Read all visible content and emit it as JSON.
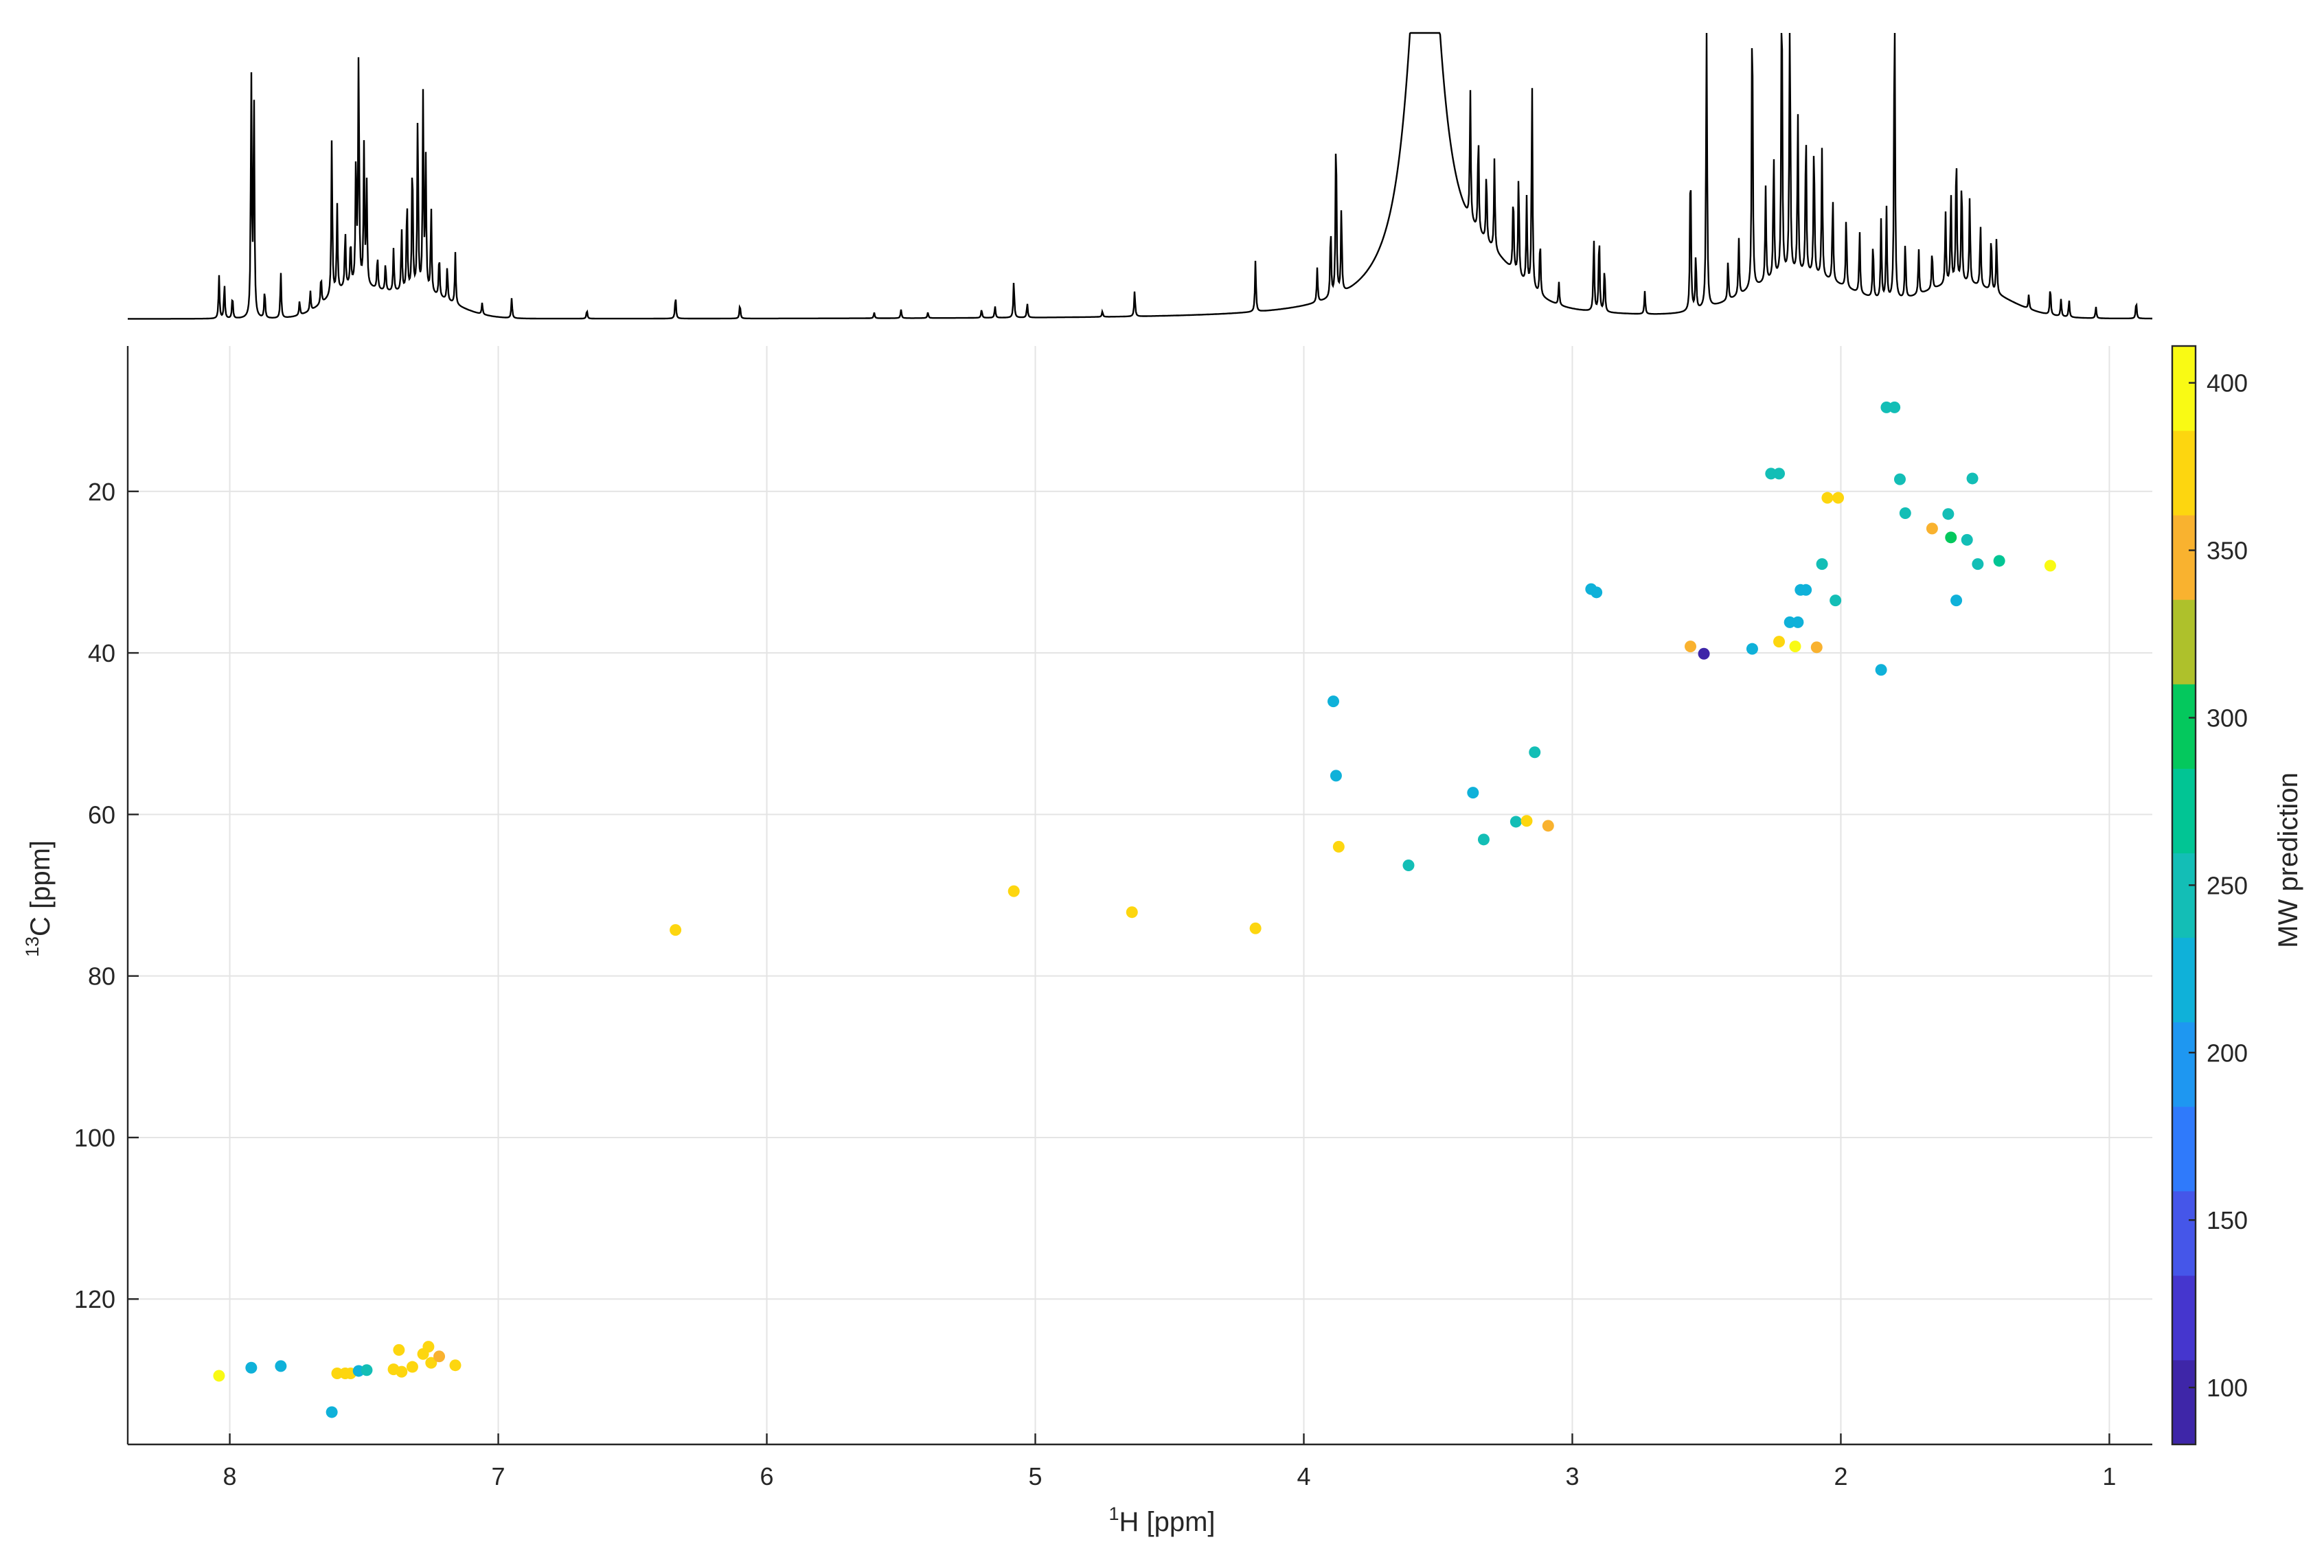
{
  "chart_data": {
    "type": "scatter",
    "title": "",
    "xlabel": {
      "sup": "1",
      "text": "H [ppm]"
    },
    "ylabel": {
      "sup": "13",
      "text": "C [ppm]"
    },
    "xlim": [
      8.38,
      0.84
    ],
    "ylim": [
      138,
      2
    ],
    "x_reversed": true,
    "y_reversed": true,
    "grid": true,
    "x_ticks": [
      8,
      7,
      6,
      5,
      4,
      3,
      2,
      1
    ],
    "x_tick_labels": [
      "8",
      "7",
      "6",
      "5",
      "4",
      "3",
      "2",
      "1"
    ],
    "y_ticks": [
      20,
      40,
      60,
      80,
      100,
      120
    ],
    "y_tick_labels": [
      "20",
      "40",
      "60",
      "80",
      "100",
      "120"
    ],
    "colorbar": {
      "label": "MW prediction",
      "range": [
        83,
        411
      ],
      "ticks": [
        100,
        150,
        200,
        250,
        300,
        350,
        400
      ],
      "tick_labels": [
        "100",
        "150",
        "200",
        "250",
        "300",
        "350",
        "400"
      ],
      "colors": [
        "#3E26A8",
        "#4536CE",
        "#4556E9",
        "#2F7AFB",
        "#1E97F1",
        "#0FB1D9",
        "#13BEB6",
        "#01C594",
        "#04C85D",
        "#AEC12B",
        "#F9B22F",
        "#FDD60F",
        "#F9FA14"
      ]
    },
    "spectrum": {
      "peaks": [
        [
          8.04,
          0.15
        ],
        [
          8.02,
          0.12
        ],
        [
          7.99,
          0.08
        ],
        [
          7.92,
          0.84
        ],
        [
          7.91,
          0.78
        ],
        [
          7.87,
          0.1
        ],
        [
          7.81,
          0.16
        ],
        [
          7.74,
          0.05
        ],
        [
          7.7,
          0.07
        ],
        [
          7.66,
          0.1
        ],
        [
          7.62,
          0.55
        ],
        [
          7.6,
          0.3
        ],
        [
          7.57,
          0.2
        ],
        [
          7.55,
          0.16
        ],
        [
          7.53,
          0.45
        ],
        [
          7.52,
          0.82
        ],
        [
          7.5,
          0.48
        ],
        [
          7.49,
          0.35
        ],
        [
          7.45,
          0.12
        ],
        [
          7.42,
          0.1
        ],
        [
          7.39,
          0.15
        ],
        [
          7.36,
          0.22
        ],
        [
          7.34,
          0.33
        ],
        [
          7.32,
          0.48
        ],
        [
          7.3,
          0.62
        ],
        [
          7.28,
          0.68
        ],
        [
          7.27,
          0.45
        ],
        [
          7.25,
          0.3
        ],
        [
          7.22,
          0.15
        ],
        [
          7.19,
          0.12
        ],
        [
          7.16,
          0.18
        ],
        [
          7.06,
          0.04
        ],
        [
          6.95,
          0.07
        ],
        [
          6.67,
          0.03
        ],
        [
          6.34,
          0.08
        ],
        [
          6.1,
          0.05
        ],
        [
          5.6,
          0.02
        ],
        [
          5.5,
          0.03
        ],
        [
          5.4,
          0.02
        ],
        [
          5.2,
          0.03
        ],
        [
          5.15,
          0.04
        ],
        [
          5.08,
          0.13
        ],
        [
          5.03,
          0.05
        ],
        [
          4.75,
          0.02
        ],
        [
          4.63,
          0.09
        ],
        [
          4.18,
          0.18
        ],
        [
          3.95,
          0.12
        ],
        [
          3.9,
          0.25
        ],
        [
          3.88,
          0.6
        ],
        [
          3.86,
          0.3
        ],
        [
          3.38,
          0.45
        ],
        [
          3.35,
          0.35
        ],
        [
          3.32,
          0.25
        ],
        [
          3.29,
          0.32
        ],
        [
          3.22,
          0.28
        ],
        [
          3.2,
          0.36
        ],
        [
          3.17,
          0.3
        ],
        [
          3.15,
          0.72
        ],
        [
          3.12,
          0.2
        ],
        [
          3.05,
          0.08
        ],
        [
          2.92,
          0.26
        ],
        [
          2.9,
          0.28
        ],
        [
          2.88,
          0.16
        ],
        [
          2.73,
          0.08
        ],
        [
          2.56,
          0.55
        ],
        [
          2.54,
          0.2
        ],
        [
          2.5,
          1.1
        ],
        [
          2.42,
          0.14
        ],
        [
          2.38,
          0.2
        ],
        [
          2.33,
          1.05
        ],
        [
          2.28,
          0.33
        ],
        [
          2.25,
          0.45
        ],
        [
          2.22,
          1.1
        ],
        [
          2.19,
          1.05
        ],
        [
          2.16,
          0.55
        ],
        [
          2.13,
          0.52
        ],
        [
          2.1,
          0.48
        ],
        [
          2.07,
          0.45
        ],
        [
          2.03,
          0.3
        ],
        [
          1.98,
          0.25
        ],
        [
          1.93,
          0.22
        ],
        [
          1.88,
          0.2
        ],
        [
          1.85,
          0.28
        ],
        [
          1.83,
          0.32
        ],
        [
          1.8,
          1.12
        ],
        [
          1.76,
          0.2
        ],
        [
          1.71,
          0.16
        ],
        [
          1.66,
          0.14
        ],
        [
          1.61,
          0.25
        ],
        [
          1.59,
          0.32
        ],
        [
          1.57,
          0.48
        ],
        [
          1.55,
          0.38
        ],
        [
          1.52,
          0.3
        ],
        [
          1.48,
          0.22
        ],
        [
          1.44,
          0.2
        ],
        [
          1.42,
          0.2
        ],
        [
          1.3,
          0.05
        ],
        [
          1.22,
          0.1
        ],
        [
          1.18,
          0.06
        ],
        [
          1.15,
          0.06
        ],
        [
          1.05,
          0.04
        ],
        [
          0.9,
          0.06
        ]
      ],
      "clumps": [
        [
          7.3,
          0.18,
          0.09
        ],
        [
          7.55,
          0.13,
          0.1
        ],
        [
          3.32,
          0.17,
          0.12
        ],
        [
          2.15,
          0.27,
          0.15
        ],
        [
          1.55,
          0.22,
          0.12
        ]
      ],
      "broad": [
        [
          3.55,
          0.065,
          1.6
        ],
        [
          3.55,
          0.28,
          0.05
        ]
      ]
    },
    "series": [
      {
        "x": [
          8.04,
          7.92,
          7.81,
          7.62,
          7.6,
          7.57,
          7.55,
          7.52,
          7.49,
          7.39,
          7.37,
          7.36,
          7.32,
          7.28,
          7.26,
          7.25,
          7.22,
          7.16,
          6.34,
          5.08,
          4.64,
          4.18,
          3.89,
          3.88,
          3.87,
          3.61,
          3.37,
          3.33,
          3.21,
          3.17,
          3.14,
          3.09,
          2.93,
          2.91,
          2.56,
          2.51,
          2.33,
          2.26,
          2.23,
          2.23,
          2.19,
          2.17,
          2.16,
          2.15,
          2.13,
          2.09,
          2.07,
          2.05,
          2.02,
          2.01,
          1.85,
          1.83,
          1.8,
          1.78,
          1.76,
          1.66,
          1.6,
          1.59,
          1.57,
          1.53,
          1.51,
          1.49,
          1.41,
          1.22
        ],
        "y": [
          129.5,
          128.5,
          128.3,
          134,
          129.2,
          129.2,
          129.2,
          128.9,
          128.8,
          128.7,
          126.3,
          129.0,
          128.4,
          126.8,
          125.9,
          127.9,
          127.1,
          128.2,
          74.3,
          69.5,
          72.1,
          74.1,
          46.0,
          55.2,
          64.0,
          66.3,
          57.3,
          63.1,
          60.9,
          60.8,
          52.3,
          61.4,
          32.1,
          32.5,
          39.2,
          40.1,
          39.5,
          17.8,
          17.8,
          38.6,
          36.2,
          39.2,
          36.2,
          32.2,
          32.2,
          39.3,
          29.0,
          20.8,
          33.5,
          20.8,
          42.1,
          9.6,
          9.6,
          18.5,
          22.7,
          24.6,
          22.8,
          25.7,
          33.5,
          26.0,
          18.4,
          29.0,
          28.6,
          29.2
        ],
        "mw": [
          400,
          220,
          220,
          225,
          375,
          375,
          375,
          225,
          240,
          375,
          380,
          375,
          375,
          375,
          380,
          380,
          355,
          375,
          375,
          375,
          375,
          375,
          225,
          220,
          375,
          235,
          220,
          235,
          235,
          375,
          240,
          355,
          225,
          225,
          355,
          105,
          225,
          235,
          235,
          380,
          225,
          395,
          225,
          225,
          225,
          355,
          235,
          375,
          235,
          375,
          225,
          235,
          235,
          235,
          235,
          355,
          235,
          285,
          225,
          255,
          235,
          235,
          260,
          400
        ]
      }
    ]
  }
}
